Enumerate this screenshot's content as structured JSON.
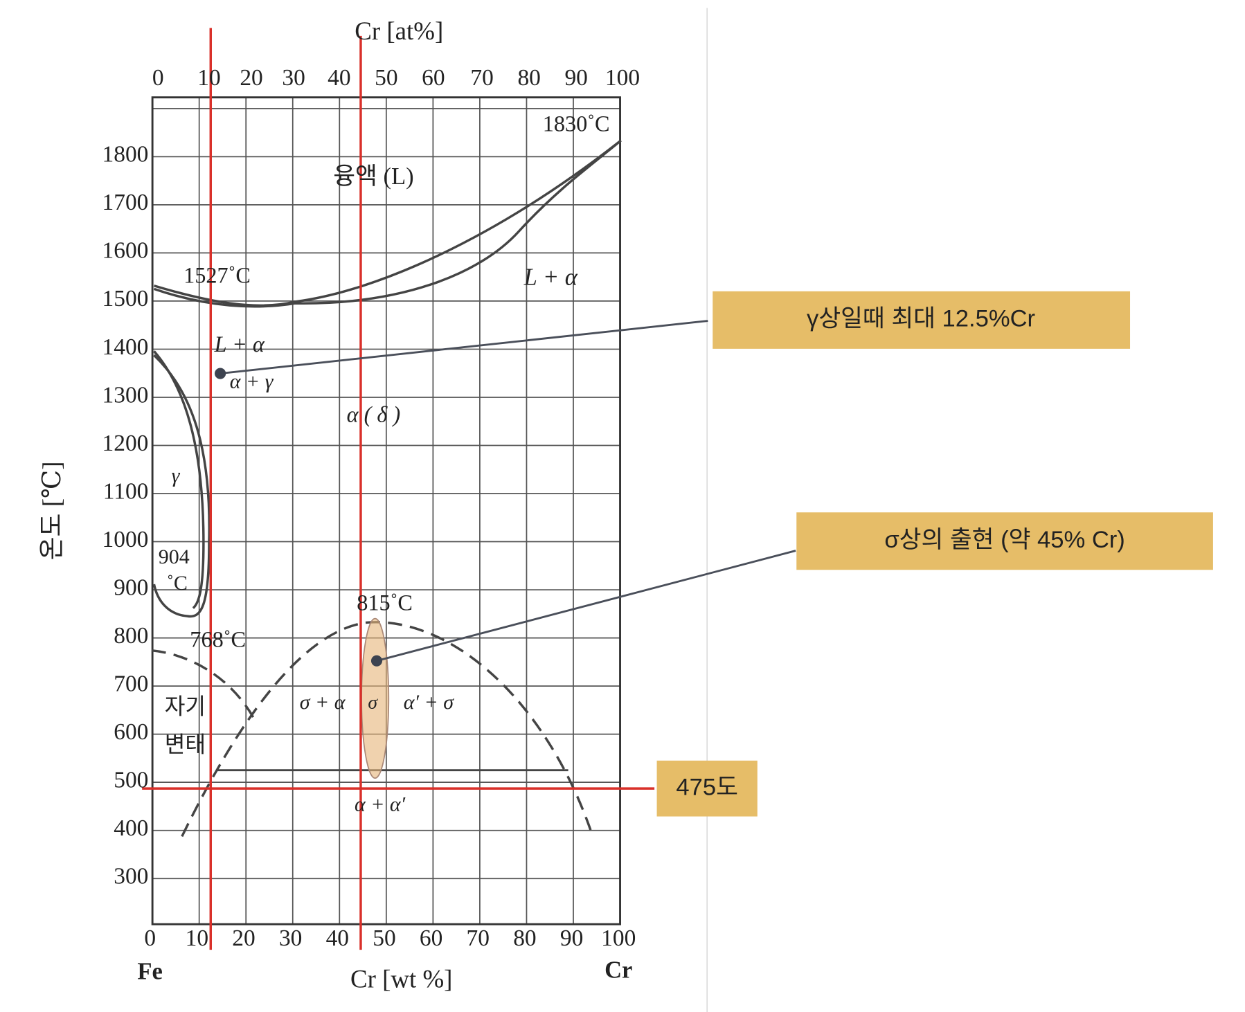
{
  "diagram": {
    "top_axis": {
      "title": "Cr [at%]",
      "ticks": [
        "0",
        "10",
        "20",
        "30",
        "40",
        "50",
        "60",
        "70",
        "80",
        "90",
        "100"
      ]
    },
    "bottom_axis": {
      "title": "Cr [wt %]",
      "ticks": [
        "0",
        "10",
        "20",
        "30",
        "40",
        "50",
        "60",
        "70",
        "80",
        "90",
        "100"
      ],
      "left_end": "Fe",
      "right_end": "Cr"
    },
    "left_axis": {
      "title": "온도 [℃]",
      "ticks": [
        "1800",
        "1700",
        "1600",
        "1500",
        "1400",
        "1300",
        "1200",
        "1100",
        "1000",
        "900",
        "800",
        "700",
        "600",
        "500",
        "400",
        "300"
      ]
    },
    "labels": [
      "1830˚C",
      "융액 (L)",
      "L + α",
      "1527˚C",
      "L + α",
      "α + γ",
      "α ( δ )",
      "γ",
      "904",
      "˚C",
      "815˚C",
      "768˚C",
      "σ + α",
      "σ",
      "α′ + σ",
      "자기",
      "변태",
      "α + α′"
    ],
    "callouts": [
      {
        "text": "γ상일때 최대 12.5%Cr"
      },
      {
        "text": "σ상의 출현 (약 45% Cr)"
      },
      {
        "text": "475도"
      }
    ]
  }
}
